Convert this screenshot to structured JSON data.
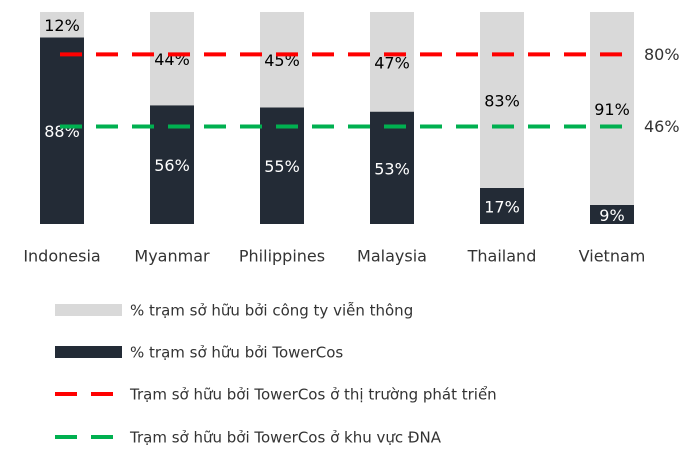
{
  "chart_data": {
    "type": "bar",
    "stacked": true,
    "categories": [
      "Indonesia",
      "Myanmar",
      "Philippines",
      "Malaysia",
      "Thailand",
      "Vietnam"
    ],
    "series": [
      {
        "name": "% trạm sở hữu bởi TowerCos",
        "color": "#232b36",
        "label_color": "#ffffff",
        "values": [
          88,
          56,
          55,
          53,
          17,
          9
        ],
        "value_labels": [
          "88%",
          "56%",
          "55%",
          "53%",
          "17%",
          "9%"
        ]
      },
      {
        "name": "% trạm sở hữu bởi công ty viễn thông",
        "color": "#d9d9d9",
        "label_color": "#000000",
        "values": [
          12,
          44,
          45,
          47,
          83,
          91
        ],
        "value_labels": [
          "12%",
          "44%",
          "45%",
          "47%",
          "83%",
          "91%"
        ]
      }
    ],
    "reference_lines": [
      {
        "name": "Trạm sở hữu bởi TowerCos ở thị trường phát triển",
        "value": 80,
        "label": "80%",
        "color": "#ff0000"
      },
      {
        "name": "Trạm sở hữu bởi TowerCos ở khu vực ĐNA",
        "value": 46,
        "label": "46%",
        "color": "#00b050"
      }
    ]
  }
}
